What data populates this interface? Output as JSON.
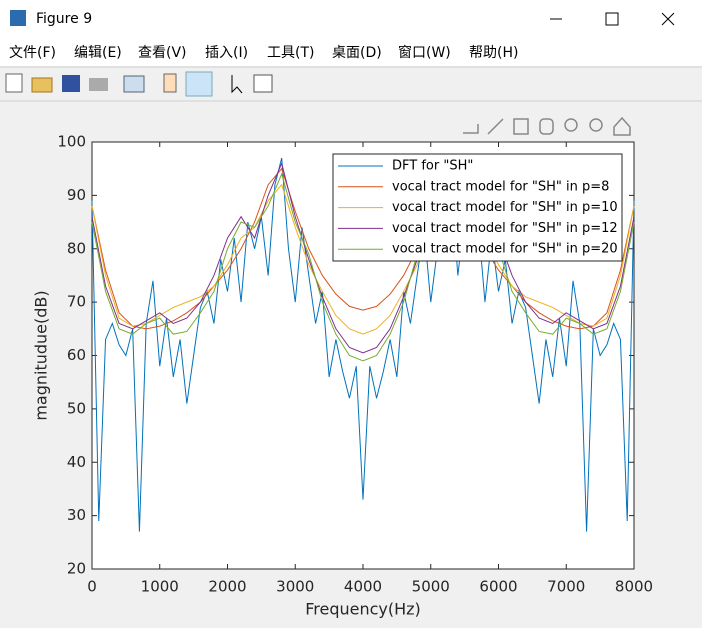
{
  "window": {
    "title": "Figure 9",
    "menu": [
      "文件(F)",
      "编辑(E)",
      "查看(V)",
      "插入(I)",
      "工具(T)",
      "桌面(D)",
      "窗口(W)",
      "帮助(H)"
    ]
  },
  "chart_data": {
    "type": "line",
    "xlabel": "Frequency(Hz)",
    "ylabel": "magnitudue(dB)",
    "xlim": [
      0,
      8000
    ],
    "ylim": [
      20,
      100
    ],
    "xticks": [
      0,
      1000,
      2000,
      3000,
      4000,
      5000,
      6000,
      7000,
      8000
    ],
    "yticks": [
      20,
      30,
      40,
      50,
      60,
      70,
      80,
      90,
      100
    ],
    "grid": false,
    "legend": "northeast",
    "series": [
      {
        "name": "DFT for \"SH\"",
        "color": "#0072bd",
        "x": [
          0,
          100,
          200,
          300,
          400,
          500,
          600,
          700,
          800,
          900,
          1000,
          1100,
          1200,
          1300,
          1400,
          1500,
          1600,
          1700,
          1800,
          1900,
          2000,
          2100,
          2200,
          2300,
          2400,
          2500,
          2600,
          2700,
          2800,
          2900,
          3000,
          3100,
          3200,
          3300,
          3400,
          3500,
          3600,
          3700,
          3800,
          3900,
          4000,
          4100,
          4200,
          4300,
          4400,
          4500,
          4600,
          4700,
          4800,
          4900,
          5000,
          5100,
          5200,
          5300,
          5400,
          5500,
          5600,
          5700,
          5800,
          5900,
          6000,
          6100,
          6200,
          6300,
          6400,
          6500,
          6600,
          6700,
          6800,
          6900,
          7000,
          7100,
          7200,
          7300,
          7400,
          7500,
          7600,
          7700,
          7800,
          7900,
          8000
        ],
        "values": [
          89,
          29,
          63,
          66,
          62,
          60,
          65,
          27,
          66,
          74,
          58,
          67,
          56,
          63,
          51,
          60,
          69,
          72,
          66,
          78,
          72,
          82,
          70,
          85,
          80,
          86,
          75,
          92,
          97,
          80,
          70,
          84,
          75,
          66,
          72,
          56,
          63,
          57,
          52,
          58,
          33,
          58,
          52,
          57,
          63,
          56,
          72,
          66,
          75,
          84,
          70,
          80,
          97,
          92,
          75,
          86,
          80,
          85,
          70,
          82,
          72,
          78,
          66,
          72,
          69,
          60,
          51,
          63,
          56,
          67,
          58,
          74,
          66,
          27,
          65,
          60,
          62,
          66,
          63,
          29,
          89
        ]
      },
      {
        "name": "vocal tract model for \"SH\" in p=8",
        "color": "#d95319",
        "x": [
          0,
          200,
          400,
          600,
          800,
          1000,
          1200,
          1400,
          1600,
          1800,
          2000,
          2200,
          2400,
          2600,
          2800,
          3000,
          3200,
          3400,
          3600,
          3800,
          4000,
          4200,
          4400,
          4600,
          4800,
          5000,
          5200,
          5400,
          5600,
          5800,
          6000,
          6200,
          6400,
          6600,
          6800,
          7000,
          7200,
          7400,
          7600,
          7800,
          8000
        ],
        "values": [
          88,
          76,
          68,
          65.5,
          65,
          65.5,
          66.5,
          68,
          70,
          73,
          76,
          80,
          85,
          92,
          95,
          87,
          80,
          75,
          71.5,
          69.2,
          68.5,
          69.2,
          71.5,
          75,
          80,
          87,
          95,
          92,
          85,
          80,
          76,
          73,
          70,
          68,
          66.5,
          65.5,
          65,
          65.5,
          68,
          76,
          88
        ]
      },
      {
        "name": "vocal tract model for \"SH\" in p=10",
        "color": "#edb120",
        "x": [
          0,
          200,
          400,
          600,
          800,
          1000,
          1200,
          1400,
          1600,
          1800,
          2000,
          2200,
          2400,
          2600,
          2800,
          3000,
          3200,
          3400,
          3600,
          3800,
          4000,
          4200,
          4400,
          4600,
          4800,
          5000,
          5200,
          5400,
          5600,
          5800,
          6000,
          6200,
          6400,
          6600,
          6800,
          7000,
          7200,
          7400,
          7600,
          7800,
          8000
        ],
        "values": [
          88,
          75,
          67,
          65.5,
          66,
          67.5,
          69,
          70,
          71,
          73,
          77,
          82,
          84,
          89,
          92,
          84,
          77,
          72,
          67.5,
          65,
          64,
          65,
          67.5,
          72,
          77,
          84,
          92,
          89,
          84,
          82,
          77,
          73,
          71,
          70,
          69,
          67.5,
          66,
          65.5,
          67,
          75,
          88
        ]
      },
      {
        "name": "vocal tract model for \"SH\" in p=12",
        "color": "#7e2f8e",
        "x": [
          0,
          200,
          400,
          600,
          800,
          1000,
          1200,
          1400,
          1600,
          1800,
          2000,
          2200,
          2400,
          2600,
          2800,
          3000,
          3200,
          3400,
          3600,
          3800,
          4000,
          4200,
          4400,
          4600,
          4800,
          5000,
          5200,
          5400,
          5600,
          5800,
          6000,
          6200,
          6400,
          6600,
          6800,
          7000,
          7200,
          7400,
          7600,
          7800,
          8000
        ],
        "values": [
          86,
          73,
          66,
          65,
          66.5,
          68,
          66,
          67,
          70,
          75,
          82,
          86,
          82,
          90,
          96,
          86,
          78,
          71,
          65,
          61.5,
          60.5,
          61.5,
          65,
          71,
          78,
          86,
          96,
          90,
          82,
          86,
          82,
          75,
          70,
          67,
          66,
          68,
          66.5,
          65,
          66,
          73,
          86
        ]
      },
      {
        "name": "vocal tract model for \"SH\" in p=20",
        "color": "#77ac30",
        "x": [
          0,
          200,
          400,
          600,
          800,
          1000,
          1200,
          1400,
          1600,
          1800,
          2000,
          2200,
          2400,
          2600,
          2800,
          3000,
          3200,
          3400,
          3600,
          3800,
          4000,
          4200,
          4400,
          4600,
          4800,
          5000,
          5200,
          5400,
          5600,
          5800,
          6000,
          6200,
          6400,
          6600,
          6800,
          7000,
          7200,
          7400,
          7600,
          7800,
          8000
        ],
        "values": [
          85,
          72,
          65,
          64,
          66,
          67,
          64,
          64.5,
          68,
          72,
          80,
          85,
          84,
          88,
          94,
          85,
          79,
          70,
          64,
          60,
          59,
          60,
          64,
          70,
          79,
          85,
          94,
          88,
          84,
          85,
          80,
          72,
          68,
          64.5,
          64,
          67,
          66,
          64,
          65,
          72,
          85
        ]
      }
    ]
  }
}
